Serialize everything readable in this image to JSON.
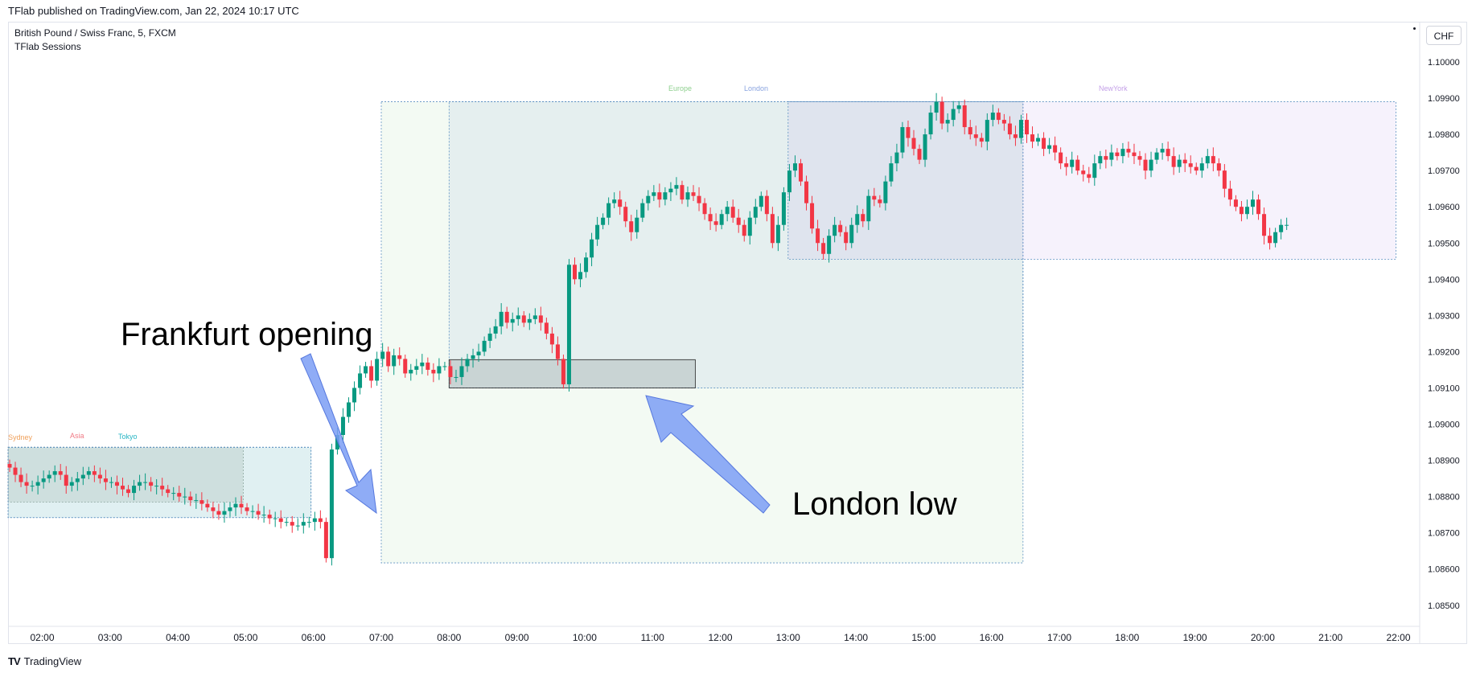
{
  "header": {
    "published": "TFlab published on TradingView.com, Jan 22, 2024 10:17 UTC",
    "symbol": "British Pound / Swiss Franc, 5, FXCM",
    "indicator": "TFlab Sessions",
    "currency": "CHF"
  },
  "footer": {
    "brand_logo": "TV",
    "brand": "TradingView"
  },
  "chart_data": {
    "type": "candlestick",
    "ylim": [
      1.0845,
      1.1005
    ],
    "y_ticks": [
      "1.10000",
      "1.09900",
      "1.09800",
      "1.09700",
      "1.09600",
      "1.09500",
      "1.09400",
      "1.09300",
      "1.09200",
      "1.09100",
      "1.09000",
      "1.08900",
      "1.08800",
      "1.08700",
      "1.08600",
      "1.08500"
    ],
    "x_ticks": [
      "02:00",
      "03:00",
      "04:00",
      "05:00",
      "06:00",
      "07:00",
      "08:00",
      "09:00",
      "10:00",
      "11:00",
      "12:00",
      "13:00",
      "14:00",
      "15:00",
      "16:00",
      "17:00",
      "18:00",
      "19:00",
      "20:00",
      "21:00",
      "22:00"
    ],
    "colors": {
      "up": "#089981",
      "down": "#f23645",
      "arrow": "#7b9ef5"
    },
    "sessions": [
      {
        "name": "Sydney",
        "start": "01:30",
        "end": "04:55",
        "high": 1.08936,
        "low": 1.08785,
        "color": "#f0a05a"
      },
      {
        "name": "Asia",
        "start": "01:30",
        "end": "05:55",
        "high": 1.08936,
        "low": 1.08742,
        "color": "#f07a85"
      },
      {
        "name": "Tokyo",
        "start": "01:30",
        "end": "05:55",
        "high": 1.08936,
        "low": 1.08742,
        "color": "#26b5c4"
      },
      {
        "name": "Europe",
        "start": "07:00",
        "end": "16:25",
        "high": 1.0989,
        "low": 1.08617,
        "color": "#8fd08f"
      },
      {
        "name": "London",
        "start": "08:00",
        "end": "16:25",
        "high": 1.0989,
        "low": 1.091,
        "color": "#8aa4e0"
      },
      {
        "name": "NewYork",
        "start": "13:00",
        "end": "21:55",
        "high": 1.0989,
        "low": 1.09455,
        "color": "#c4a0e8"
      }
    ],
    "range_box": {
      "start": "08:00",
      "end": "11:35",
      "high": 1.09178,
      "low": 1.091
    },
    "annotations": [
      "Frankfurt opening",
      "London low"
    ],
    "closes": [
      1.0888,
      1.0886,
      1.0884,
      1.0883,
      1.0883,
      1.0884,
      1.0885,
      1.0886,
      1.0887,
      1.0886,
      1.0883,
      1.0884,
      1.0885,
      1.0886,
      1.0887,
      1.0886,
      1.0885,
      1.0884,
      1.0884,
      1.0883,
      1.0882,
      1.0881,
      1.0883,
      1.0884,
      1.0884,
      1.0883,
      1.0883,
      1.0882,
      1.0881,
      1.0881,
      1.088,
      1.088,
      1.0879,
      1.0879,
      1.0878,
      1.0877,
      1.0876,
      1.0875,
      1.0876,
      1.0877,
      1.0878,
      1.0877,
      1.0876,
      1.0876,
      1.0875,
      1.0875,
      1.0874,
      1.0874,
      1.0873,
      1.0873,
      1.0872,
      1.0872,
      1.0873,
      1.0873,
      1.0874,
      1.0873,
      1.0863,
      1.0893,
      1.0897,
      1.0902,
      1.0906,
      1.091,
      1.0914,
      1.0916,
      1.0912,
      1.0918,
      1.092,
      1.0916,
      1.0919,
      1.0918,
      1.0914,
      1.0915,
      1.0916,
      1.0917,
      1.0915,
      1.0914,
      1.0916,
      1.0916,
      1.0913,
      1.0913,
      1.0916,
      1.0918,
      1.0919,
      1.092,
      1.0923,
      1.0925,
      1.0927,
      1.0931,
      1.0928,
      1.0929,
      1.093,
      1.0928,
      1.0929,
      1.093,
      1.0928,
      1.0925,
      1.0922,
      1.0918,
      1.0911,
      1.0944,
      1.094,
      1.0942,
      1.0946,
      1.0951,
      1.0955,
      1.0957,
      1.0961,
      1.0962,
      1.096,
      1.0956,
      1.0953,
      1.0957,
      1.0961,
      1.0963,
      1.0964,
      1.0962,
      1.0964,
      1.0965,
      1.0966,
      1.0962,
      1.0964,
      1.0963,
      1.0961,
      1.0958,
      1.0956,
      1.0955,
      1.0958,
      1.096,
      1.0957,
      1.0955,
      1.0952,
      1.0957,
      1.096,
      1.0963,
      1.0958,
      1.095,
      1.0955,
      1.0964,
      1.097,
      1.0972,
      1.0967,
      1.0961,
      1.0954,
      1.095,
      1.0947,
      1.0952,
      1.0955,
      1.0953,
      1.095,
      1.0955,
      1.0958,
      1.0956,
      1.0963,
      1.0962,
      1.0961,
      1.0967,
      1.0972,
      1.0975,
      1.0982,
      1.0979,
      1.0976,
      1.0973,
      1.098,
      1.0986,
      1.0989,
      1.0983,
      1.0984,
      1.0987,
      1.0988,
      1.0982,
      1.098,
      1.0979,
      1.0978,
      1.0984,
      1.0986,
      1.0984,
      1.0983,
      1.098,
      1.0979,
      1.0984,
      1.098,
      1.0978,
      1.0979,
      1.0976,
      1.0977,
      1.0975,
      1.0972,
      1.0971,
      1.0973,
      1.097,
      1.0969,
      1.0968,
      1.0972,
      1.0974,
      1.0973,
      1.0975,
      1.0974,
      1.0976,
      1.0975,
      1.0974,
      1.0973,
      1.097,
      1.0973,
      1.0975,
      1.0976,
      1.0974,
      1.0971,
      1.0973,
      1.0972,
      1.0971,
      1.097,
      1.0972,
      1.0974,
      1.0972,
      1.097,
      1.0965,
      1.0962,
      1.096,
      1.0958,
      1.096,
      1.0962,
      1.0958,
      1.0952,
      1.095,
      1.0953,
      1.0955,
      1.0955
    ]
  }
}
